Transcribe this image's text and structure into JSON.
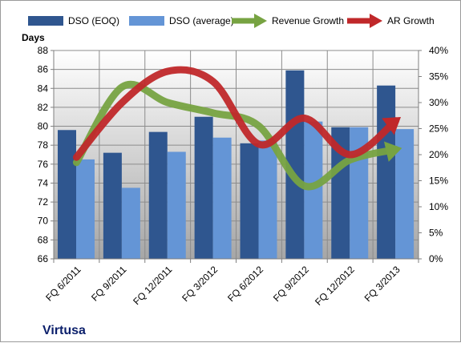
{
  "chart_data": {
    "type": "bar",
    "title": "",
    "company_label": "Virtusa",
    "categories": [
      "FQ 6/2011",
      "FQ 9/2011",
      "FQ 12/2011",
      "FQ 3/2012",
      "FQ 6/2012",
      "FQ 9/2012",
      "FQ 12/2012",
      "FQ 3/2013"
    ],
    "y_left": {
      "label": "Days",
      "min": 66,
      "max": 88,
      "step": 2
    },
    "y_right": {
      "label": "",
      "min": 0,
      "max": 0.4,
      "step": 0.05,
      "format": "percent"
    },
    "bar_series": [
      {
        "name": "DSO (EOQ)",
        "color": "#2f568f",
        "values": [
          79.6,
          77.2,
          79.4,
          81.0,
          78.2,
          85.9,
          79.9,
          84.3
        ]
      },
      {
        "name": "DSO (average)",
        "color": "#6495d6",
        "values": [
          76.5,
          73.5,
          77.3,
          78.8,
          78.5,
          80.5,
          79.9,
          79.7
        ]
      }
    ],
    "line_series": [
      {
        "name": "Revenue Growth",
        "color": "#77a342",
        "axis": "right",
        "values": [
          0.185,
          0.33,
          0.3,
          0.28,
          0.255,
          0.14,
          0.19,
          0.21
        ]
      },
      {
        "name": "AR Growth",
        "color": "#c0282a",
        "axis": "right",
        "values": [
          0.195,
          0.3,
          0.36,
          0.34,
          0.22,
          0.27,
          0.2,
          0.265
        ]
      }
    ],
    "grid": true,
    "legend_position": "top"
  }
}
